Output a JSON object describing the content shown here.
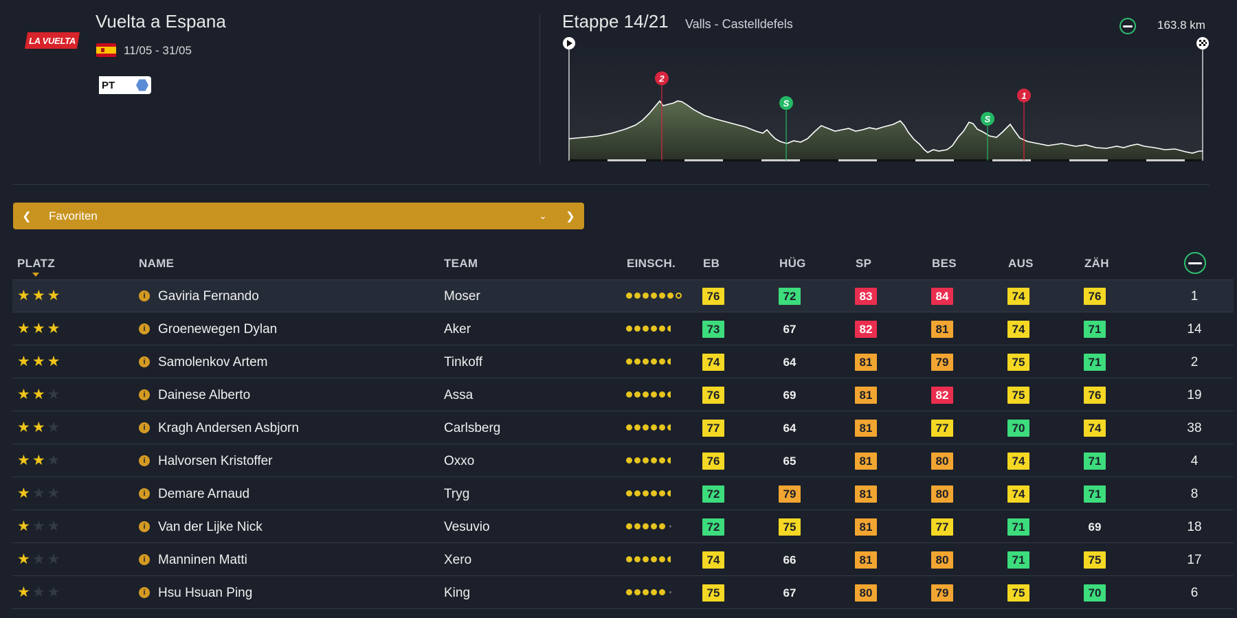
{
  "race": {
    "logo_text": "LA VUELTA",
    "title": "Vuelta a Espana",
    "dates": "11/05 - 31/05",
    "badge": "PT"
  },
  "stage": {
    "title": "Etappe 14/21",
    "route": "Valls - Castelldefels",
    "distance": "163.8 km",
    "climb_markers": [
      "2",
      "1"
    ],
    "sprint_markers": [
      "S",
      "S"
    ]
  },
  "selector": {
    "label": "Favoriten"
  },
  "table": {
    "headers": {
      "platz": "PLATZ",
      "name": "NAME",
      "team": "TEAM",
      "einsch": "EINSCH.",
      "eb": "EB",
      "hug": "HÜG",
      "sp": "SP",
      "bes": "BES",
      "aus": "AUS",
      "zah": "ZÄH"
    },
    "rows": [
      {
        "stars": 3,
        "name": "Gaviria Fernando",
        "team": "Moser",
        "dots": "6r",
        "eb": "76",
        "hug": "72",
        "sp": "83",
        "bes": "84",
        "aus": "74",
        "zah": "76",
        "fav": "1"
      },
      {
        "stars": 3,
        "name": "Groenewegen Dylan",
        "team": "Aker",
        "dots": "5h",
        "eb": "73",
        "hug": "67",
        "sp": "82",
        "bes": "81",
        "aus": "74",
        "zah": "71",
        "fav": "14"
      },
      {
        "stars": 3,
        "name": "Samolenkov Artem",
        "team": "Tinkoff",
        "dots": "5h",
        "eb": "74",
        "hug": "64",
        "sp": "81",
        "bes": "79",
        "aus": "75",
        "zah": "71",
        "fav": "2"
      },
      {
        "stars": 2,
        "name": "Dainese Alberto",
        "team": "Assa",
        "dots": "5h",
        "eb": "76",
        "hug": "69",
        "sp": "81",
        "bes": "82",
        "aus": "75",
        "zah": "76",
        "fav": "19"
      },
      {
        "stars": 2,
        "name": "Kragh Andersen Asbjorn",
        "team": "Carlsberg",
        "dots": "5h",
        "eb": "77",
        "hug": "64",
        "sp": "81",
        "bes": "77",
        "aus": "70",
        "zah": "74",
        "fav": "38"
      },
      {
        "stars": 2,
        "name": "Halvorsen Kristoffer",
        "team": "Oxxo",
        "dots": "5h",
        "eb": "76",
        "hug": "65",
        "sp": "81",
        "bes": "80",
        "aus": "74",
        "zah": "71",
        "fav": "4"
      },
      {
        "stars": 1,
        "name": "Demare Arnaud",
        "team": "Tryg",
        "dots": "5h",
        "eb": "72",
        "hug": "79",
        "sp": "81",
        "bes": "80",
        "aus": "74",
        "zah": "71",
        "fav": "8"
      },
      {
        "stars": 1,
        "name": "Van der Lijke Nick",
        "team": "Vesuvio",
        "dots": "5e",
        "eb": "72",
        "hug": "75",
        "sp": "81",
        "bes": "77",
        "aus": "71",
        "zah": "69",
        "fav": "18"
      },
      {
        "stars": 1,
        "name": "Manninen Matti",
        "team": "Xero",
        "dots": "5h",
        "eb": "74",
        "hug": "66",
        "sp": "81",
        "bes": "80",
        "aus": "71",
        "zah": "75",
        "fav": "17"
      },
      {
        "stars": 1,
        "name": "Hsu Hsuan Ping",
        "team": "King",
        "dots": "5e",
        "eb": "75",
        "hug": "67",
        "sp": "80",
        "bes": "79",
        "aus": "75",
        "zah": "70",
        "fav": "6"
      }
    ]
  },
  "colors": {
    "background": "#1b202a",
    "accent_gold": "#c9931f",
    "stat_green": "#3ddc7c",
    "stat_yellow": "#f5d824",
    "stat_orange": "#f2a531",
    "stat_red": "#ea2e4f"
  }
}
